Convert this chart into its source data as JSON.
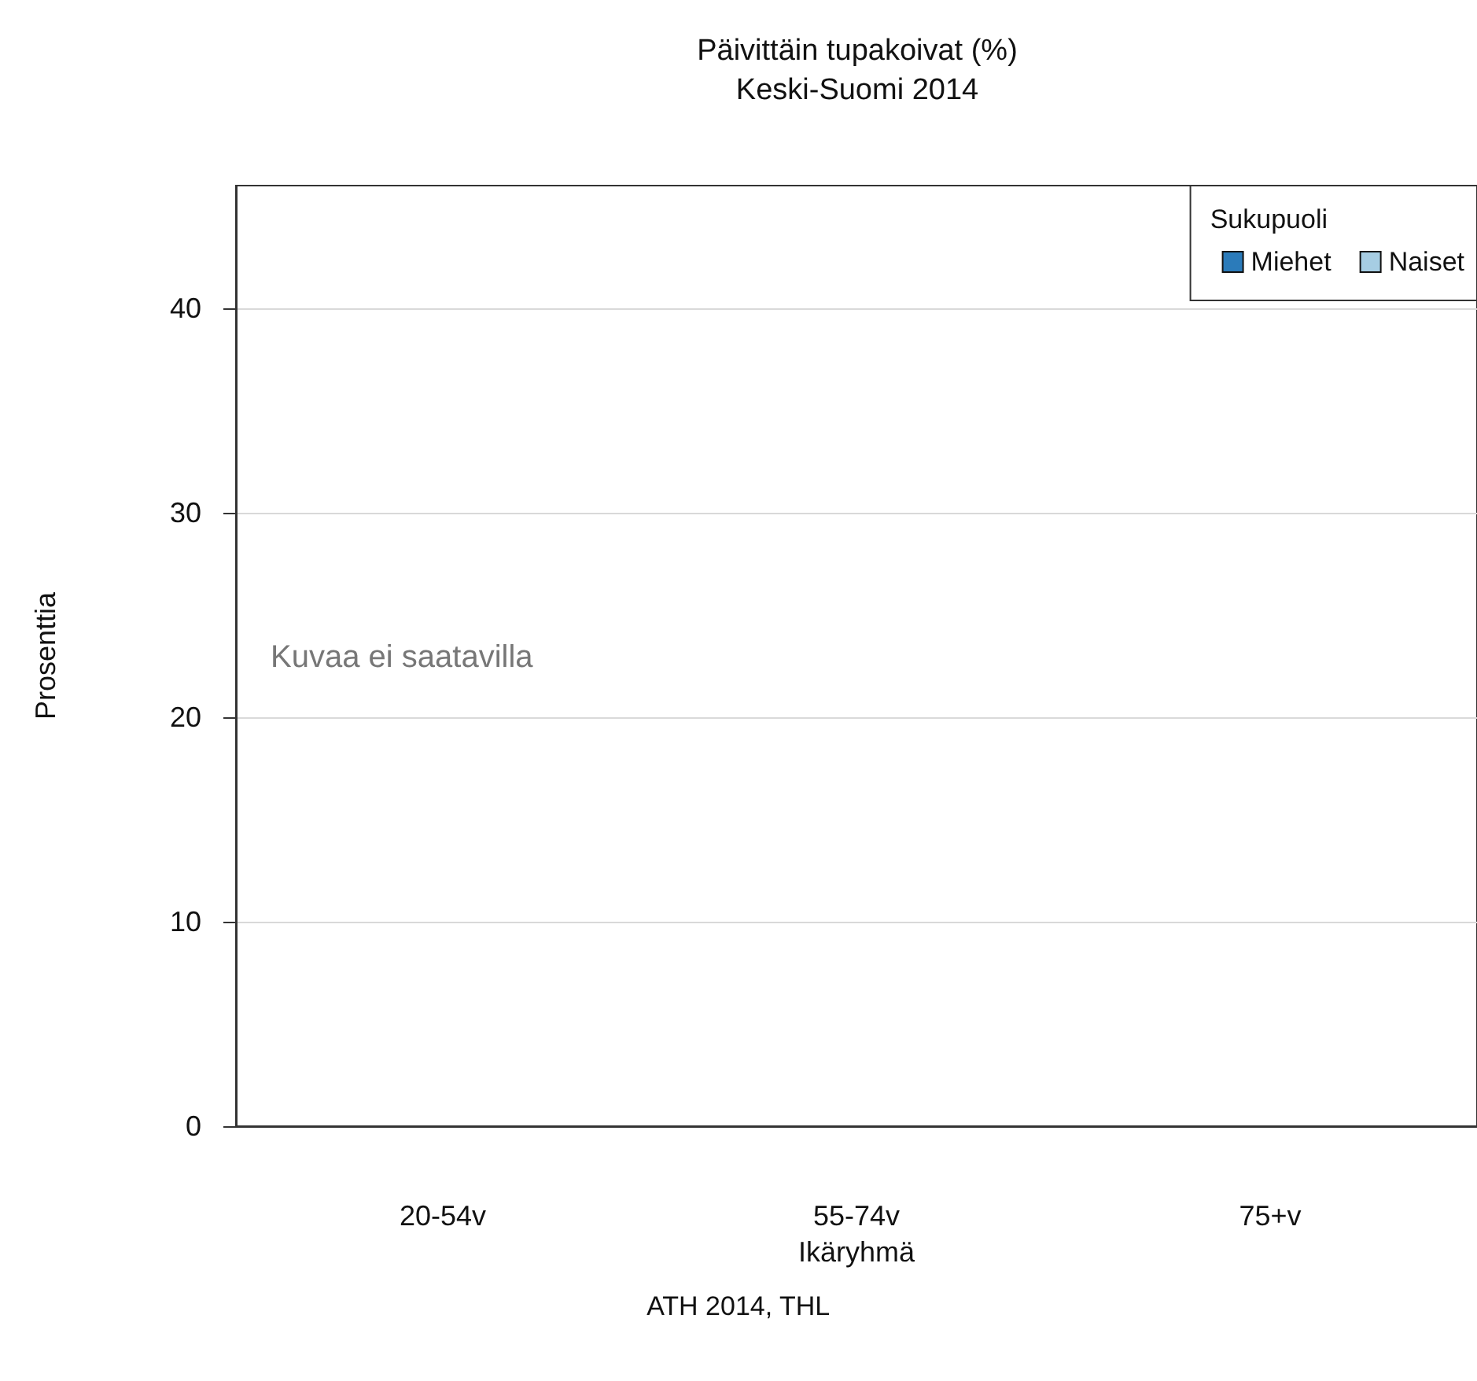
{
  "chart_data": {
    "type": "bar",
    "title": "Päivittäin tupakoivat (%)",
    "subtitle": "Keski-Suomi 2014",
    "xlabel": "Ikäryhmä",
    "ylabel": "Prosenttia",
    "legend_title": "Sukupuoli",
    "categories": [
      "20-54v",
      "55-74v",
      "75+v"
    ],
    "series": [
      {
        "name": "Miehet",
        "color": "#2b7bba",
        "values": [
          null,
          null,
          null
        ]
      },
      {
        "name": "Naiset",
        "color": "#a6cde3",
        "values": [
          null,
          null,
          null
        ]
      }
    ],
    "ylim": [
      0,
      46
    ],
    "yticks": [
      0,
      10,
      20,
      30,
      40
    ],
    "grid": "y",
    "legend": "top right",
    "annotations": [
      "Kuvaa ei saatavilla",
      "ATH 2014, THL"
    ]
  }
}
